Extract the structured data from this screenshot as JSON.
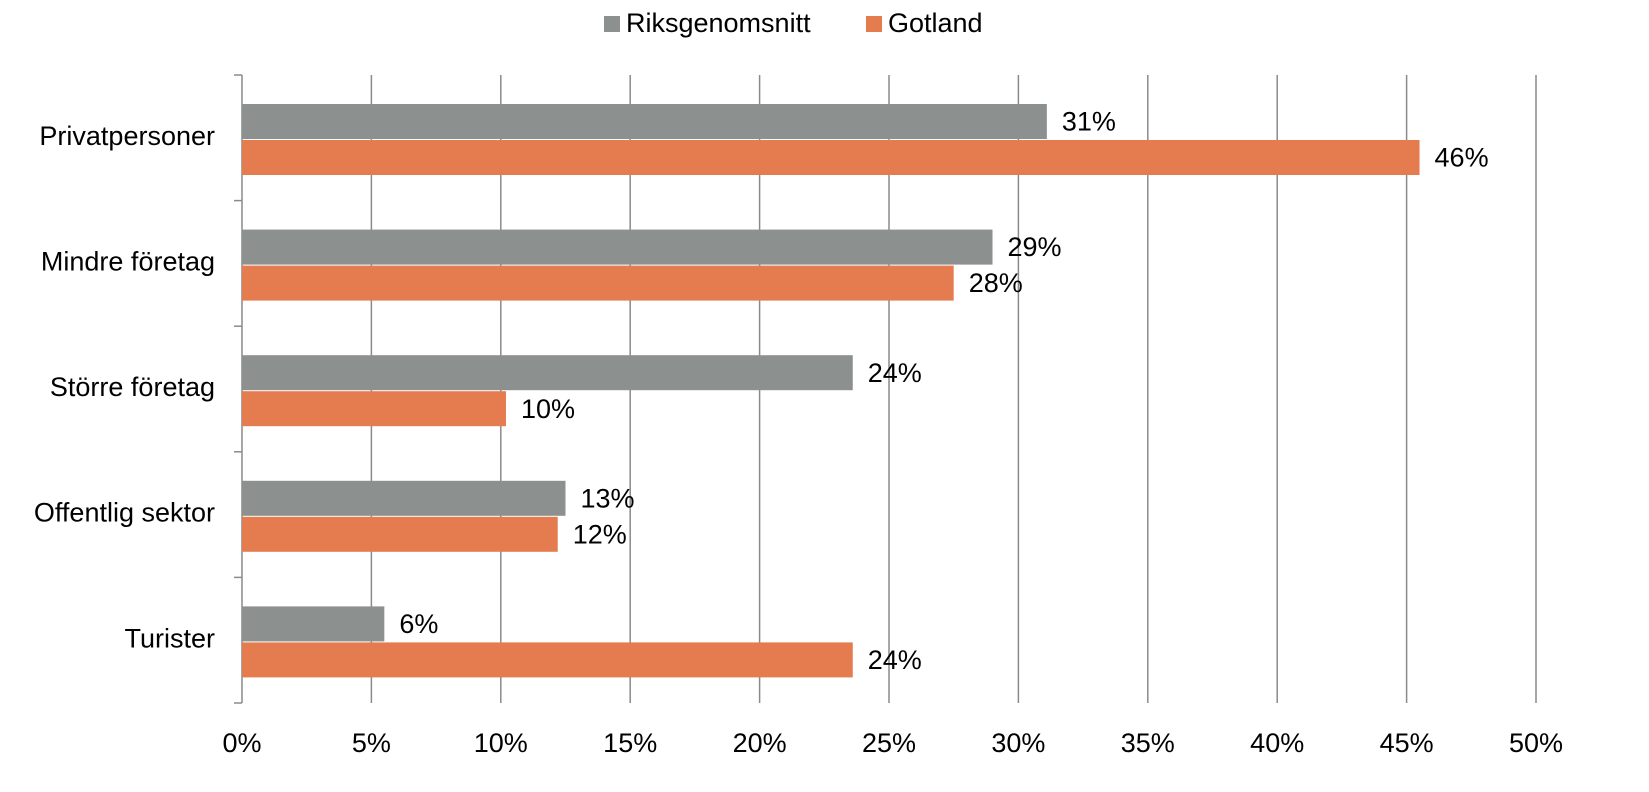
{
  "chart_data": {
    "type": "bar",
    "orientation": "horizontal",
    "categories": [
      "Privatpersoner",
      "Mindre företag",
      "Större företag",
      "Offentlig sektor",
      "Turister"
    ],
    "series": [
      {
        "name": "Riksgenomsnitt",
        "color": "#8c918f",
        "values": [
          31.1,
          29.0,
          23.6,
          12.5,
          5.5
        ],
        "value_labels": [
          "31%",
          "29%",
          "24%",
          "13%",
          "6%"
        ]
      },
      {
        "name": "Gotland",
        "color": "#e57c4f",
        "values": [
          45.5,
          27.5,
          10.2,
          12.2,
          23.6
        ],
        "value_labels": [
          "46%",
          "28%",
          "10%",
          "12%",
          "24%"
        ]
      }
    ],
    "xlim": [
      0,
      50
    ],
    "xticks": [
      {
        "value": 0,
        "label": "0%"
      },
      {
        "value": 5,
        "label": "5%"
      },
      {
        "value": 10,
        "label": "10%"
      },
      {
        "value": 15,
        "label": "15%"
      },
      {
        "value": 20,
        "label": "20%"
      },
      {
        "value": 25,
        "label": "25%"
      },
      {
        "value": 30,
        "label": "30%"
      },
      {
        "value": 35,
        "label": "35%"
      },
      {
        "value": 40,
        "label": "40%"
      },
      {
        "value": 45,
        "label": "45%"
      },
      {
        "value": 50,
        "label": "50%"
      }
    ],
    "grid": true,
    "legend": "top"
  }
}
